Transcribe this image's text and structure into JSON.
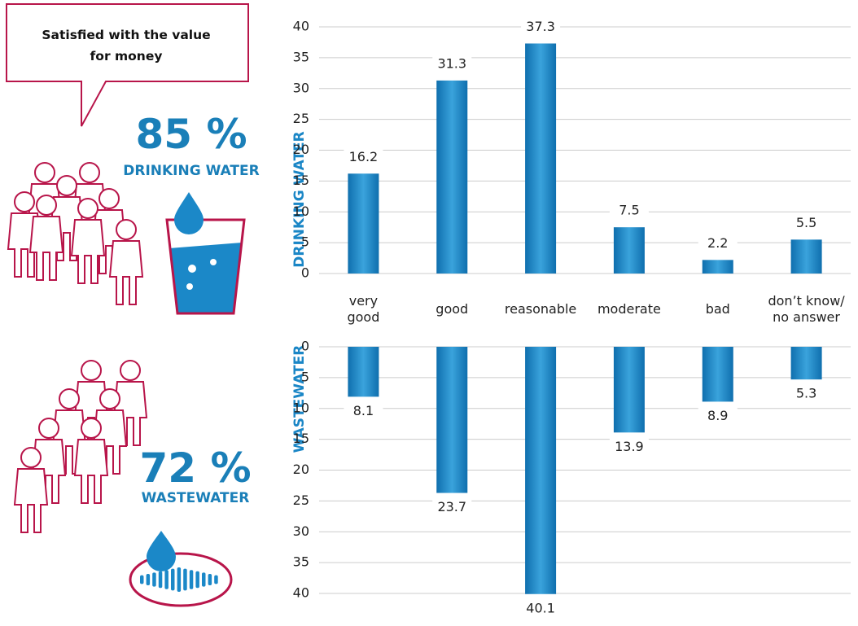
{
  "callout": "Satisfied with the value\nfor money",
  "highlights": [
    {
      "share": "85 %",
      "label": "DRINKING WATER"
    },
    {
      "share": "72 %",
      "label": "WASTEWATER"
    }
  ],
  "chart_data": [
    {
      "type": "bar",
      "axis_title": "DRINKING WATER",
      "direction": "up",
      "categories": [
        "very\ngood",
        "good",
        "reasonable",
        "moderate",
        "bad",
        "don’t know/\nno answer"
      ],
      "values": [
        16.2,
        31.3,
        37.3,
        7.5,
        2.2,
        5.5
      ],
      "color": "#1b88c8",
      "ylim": [
        0,
        40
      ],
      "yticks": [
        0,
        5,
        10,
        15,
        20,
        25,
        30,
        35,
        40
      ],
      "grid": true
    },
    {
      "type": "bar",
      "axis_title": "WASTEWATER",
      "direction": "down",
      "values": [
        8.1,
        23.7,
        40.1,
        13.9,
        8.9,
        5.3
      ],
      "color": "#1b88c8",
      "ylim": [
        0,
        40
      ],
      "yticks": [
        0,
        5,
        10,
        15,
        20,
        25,
        30,
        35,
        40
      ],
      "grid": true
    }
  ]
}
